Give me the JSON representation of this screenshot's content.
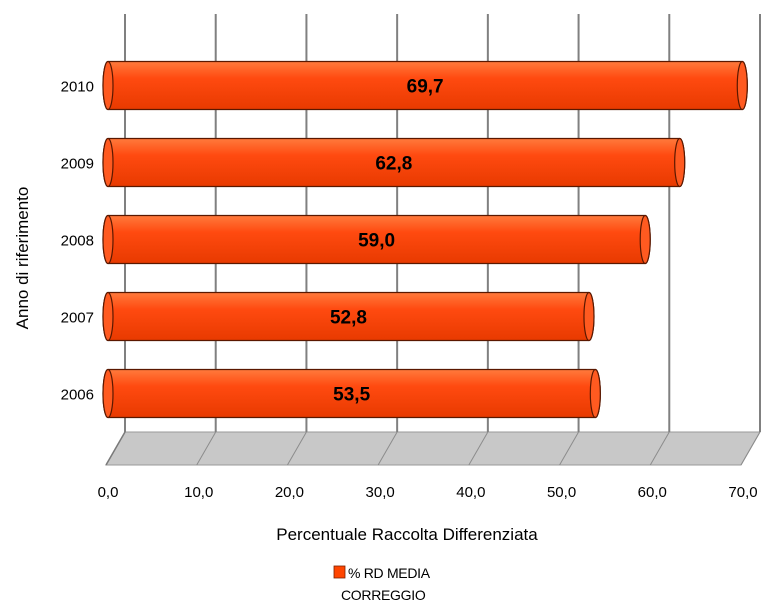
{
  "chart_data": {
    "type": "bar",
    "orientation": "horizontal",
    "categories": [
      "2006",
      "2007",
      "2008",
      "2009",
      "2010"
    ],
    "series": [
      {
        "name": "% RD MEDIA CORREGGIO",
        "values": [
          53.5,
          52.8,
          59.0,
          62.8,
          69.7
        ],
        "labels": [
          "53,5",
          "52,8",
          "59,0",
          "62,8",
          "69,7"
        ],
        "color": "#ff4500"
      }
    ],
    "xlabel": "Percentuale Raccolta Differenziata",
    "ylabel": "Anno di riferimento",
    "xlim": [
      0,
      70
    ],
    "x_ticks": [
      0,
      10,
      20,
      30,
      40,
      50,
      60,
      70
    ],
    "x_tick_labels": [
      "0,0",
      "10,0",
      "20,0",
      "30,0",
      "40,0",
      "50,0",
      "60,0",
      "70,0"
    ],
    "grid": true,
    "style": "3d-cylinder",
    "legend": {
      "position": "bottom",
      "lines": [
        "% RD MEDIA",
        "CORREGGIO"
      ]
    }
  }
}
